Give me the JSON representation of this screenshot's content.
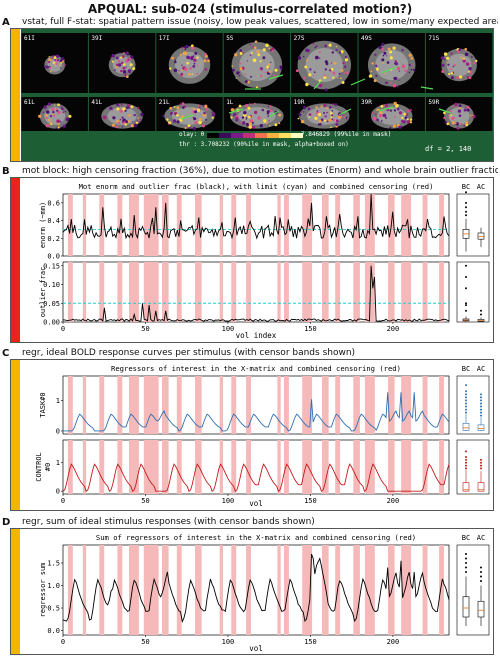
{
  "title": "APQUAL:  sub-024  (stimulus-correlated motion?)",
  "colors": {
    "orange": "#f5b400",
    "red": "#e8231c",
    "mri_bg": "#1e5e34",
    "censor": "#f5b9b9",
    "cyan": "#1fd0d0",
    "blue": "#2f6fb3",
    "dkred": "#c41a1a"
  },
  "panels": [
    {
      "letter": "A",
      "caption": "vstat, full F-stat: spatial pattern issue (noisy, low peak values, scattered, low in some/many expected areas)",
      "row1_labels": [
        "61I",
        "39I",
        "17I",
        "5S",
        "27S",
        "49S",
        "71S"
      ],
      "row2_labels": [
        "61L",
        "41L",
        "21L",
        "1L",
        "19R",
        "39R",
        "59R"
      ],
      "olay_text": "olay: 0",
      "olay_max": "7.846829 (99%ile in mask)",
      "thr_text": "thr : 3.708232 (90%ile in mask, alpha+boxed on)",
      "df_text": "df = 2, 140"
    },
    {
      "letter": "B",
      "caption": "mot block: high censoring fraction (36%), due to motion estimates (Enorm) and whole brain outlier fractions",
      "subtitle": "Mot enorm and outlier frac (black), with limit (cyan) and combined censoring (red)",
      "ylabel1": "enorm (~mm)",
      "ylabel2": "outlier frac",
      "xlabel": "vol index",
      "yticks1": [
        "0.0",
        "0.2",
        "0.4",
        "0.6"
      ],
      "yticks2": [
        "0.00",
        "0.05",
        "0.10",
        "0.15"
      ],
      "xticks": [
        "0",
        "50",
        "100",
        "150",
        "200"
      ],
      "bc": "BC",
      "ac": "AC"
    },
    {
      "letter": "C",
      "caption": "regr, ideal BOLD response curves per stimulus (with censor bands shown)",
      "subtitle": "Regressors of interest in the X-matrix and combined censoring (red)",
      "ylabel1": "TASK#0",
      "ylabel2a": "CONTROL",
      "ylabel2b": "#0",
      "xlabel": "vol",
      "yticks": [
        "0",
        "1"
      ],
      "xticks": [
        "0",
        "50",
        "100",
        "150",
        "200"
      ],
      "bc": "BC",
      "ac": "AC"
    },
    {
      "letter": "D",
      "caption": "regr, sum of ideal stimulus responses (with censor bands shown)",
      "subtitle": "Sum of regressors of interest in the X-matrix and combined censoring (red)",
      "ylabel": "regressor sum",
      "xlabel": "vol",
      "yticks": [
        "0.0",
        "0.5",
        "1.0",
        "1.5"
      ],
      "xticks": [
        "0",
        "50",
        "100",
        "150",
        "200"
      ],
      "bc": "BC",
      "ac": "AC"
    }
  ]
}
